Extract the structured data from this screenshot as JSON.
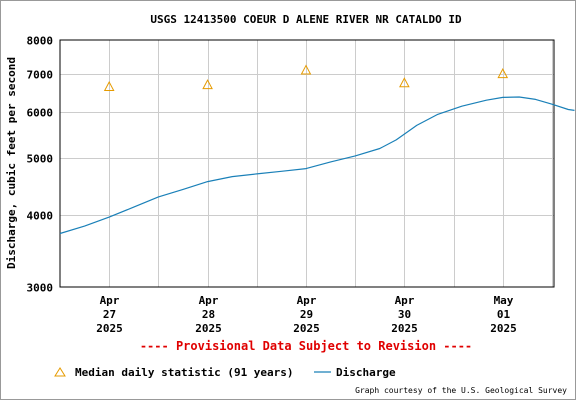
{
  "chart_data": {
    "type": "line",
    "title": "USGS 12413500 COEUR D ALENE RIVER NR CATALDO ID",
    "ylabel": "Discharge, cubic feet per second",
    "xlabel": "",
    "y_scale": "log",
    "ylim": [
      3000,
      8000
    ],
    "y_ticks": [
      {
        "value": 3000,
        "label": "3000"
      },
      {
        "value": 4000,
        "label": "4000"
      },
      {
        "value": 5000,
        "label": "5000"
      },
      {
        "value": 6000,
        "label": "6000"
      },
      {
        "value": 7000,
        "label": "7000"
      },
      {
        "value": 8000,
        "label": "8000"
      }
    ],
    "xlim": [
      "2025-04-26 12:00",
      "2025-05-01 12:30"
    ],
    "x_ticks": [
      {
        "x": "2025-04-27 00:00",
        "lines": [
          "Apr",
          "27",
          "2025"
        ]
      },
      {
        "x": "2025-04-28 00:00",
        "lines": [
          "Apr",
          "28",
          "2025"
        ]
      },
      {
        "x": "2025-04-29 00:00",
        "lines": [
          "Apr",
          "29",
          "2025"
        ]
      },
      {
        "x": "2025-04-30 00:00",
        "lines": [
          "Apr",
          "30",
          "2025"
        ]
      },
      {
        "x": "2025-05-01 00:00",
        "lines": [
          "May",
          "01",
          "2025"
        ]
      }
    ],
    "grid": true,
    "series": [
      {
        "name": "Discharge",
        "color": "#1a80b8",
        "points": [
          [
            "2025-04-26 12:00",
            3710
          ],
          [
            "2025-04-26 18:00",
            3820
          ],
          [
            "2025-04-27 00:00",
            3960
          ],
          [
            "2025-04-27 06:00",
            4120
          ],
          [
            "2025-04-27 12:00",
            4290
          ],
          [
            "2025-04-27 18:00",
            4420
          ],
          [
            "2025-04-28 00:00",
            4560
          ],
          [
            "2025-04-28 06:00",
            4650
          ],
          [
            "2025-04-28 12:00",
            4700
          ],
          [
            "2025-04-28 18:00",
            4750
          ],
          [
            "2025-04-29 00:00",
            4800
          ],
          [
            "2025-04-29 06:00",
            4930
          ],
          [
            "2025-04-29 12:00",
            5050
          ],
          [
            "2025-04-29 18:00",
            5200
          ],
          [
            "2025-04-29 22:00",
            5380
          ],
          [
            "2025-04-30 03:00",
            5700
          ],
          [
            "2025-04-30 08:00",
            5950
          ],
          [
            "2025-04-30 14:00",
            6150
          ],
          [
            "2025-04-30 20:00",
            6300
          ],
          [
            "2025-05-01 00:00",
            6370
          ],
          [
            "2025-05-01 04:00",
            6380
          ],
          [
            "2025-05-01 08:00",
            6320
          ],
          [
            "2025-05-01 12:00",
            6200
          ],
          [
            "2025-05-01 16:00",
            6070
          ],
          [
            "2025-05-01 17:30",
            6050
          ]
        ]
      },
      {
        "name": "Median daily statistic (91 years)",
        "color": "#e69b00",
        "marker": "triangle",
        "points": [
          [
            "2025-04-27 00:00",
            6650
          ],
          [
            "2025-04-28 00:00",
            6700
          ],
          [
            "2025-04-29 00:00",
            7100
          ],
          [
            "2025-04-30 00:00",
            6750
          ],
          [
            "2025-05-01 00:00",
            7000
          ]
        ]
      }
    ]
  },
  "provisional_text": "---- Provisional Data Subject to Revision ----",
  "legend": {
    "median_label": "Median daily statistic (91 years)",
    "discharge_label": "Discharge"
  },
  "credit": "Graph courtesy of the U.S. Geological Survey",
  "colors": {
    "discharge": "#1a80b8",
    "median": "#e69b00",
    "provisional": "#e00000",
    "grid": "#cccccc"
  }
}
